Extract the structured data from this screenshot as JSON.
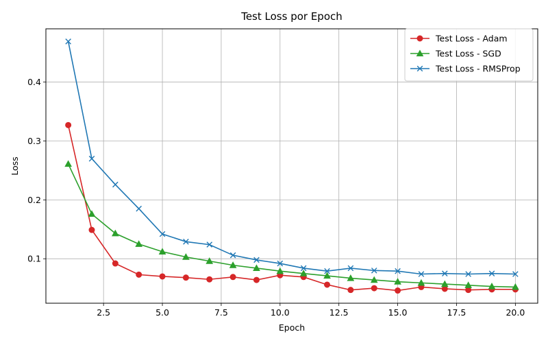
{
  "chart_data": {
    "type": "line",
    "title": "Test Loss por Epoch",
    "xlabel": "Epoch",
    "ylabel": "Loss",
    "xlim": [
      0.05,
      20.95
    ],
    "ylim": [
      0.0245,
      0.4905
    ],
    "xticks": [
      2.5,
      5.0,
      7.5,
      10.0,
      12.5,
      15.0,
      17.5,
      20.0
    ],
    "xtick_labels": [
      "2.5",
      "5.0",
      "7.5",
      "10.0",
      "12.5",
      "15.0",
      "17.5",
      "20.0"
    ],
    "yticks": [
      0.1,
      0.2,
      0.3,
      0.4
    ],
    "ytick_labels": [
      "0.1",
      "0.2",
      "0.3",
      "0.4"
    ],
    "grid": true,
    "legend_position": "top-right",
    "x": [
      1,
      2,
      3,
      4,
      5,
      6,
      7,
      8,
      9,
      10,
      11,
      12,
      13,
      14,
      15,
      16,
      17,
      18,
      19,
      20
    ],
    "series": [
      {
        "name": "Test Loss - Adam",
        "color": "#d62728",
        "marker": "circle",
        "values": [
          0.327,
          0.149,
          0.092,
          0.073,
          0.07,
          0.068,
          0.065,
          0.069,
          0.064,
          0.072,
          0.069,
          0.056,
          0.047,
          0.05,
          0.046,
          0.052,
          0.049,
          0.047,
          0.048,
          0.048
        ]
      },
      {
        "name": "Test Loss - SGD",
        "color": "#2ca02c",
        "marker": "triangle",
        "values": [
          0.261,
          0.176,
          0.143,
          0.125,
          0.112,
          0.103,
          0.096,
          0.089,
          0.084,
          0.079,
          0.075,
          0.071,
          0.067,
          0.064,
          0.061,
          0.059,
          0.057,
          0.055,
          0.053,
          0.052
        ]
      },
      {
        "name": "Test Loss - RMSProp",
        "color": "#1f77b4",
        "marker": "x",
        "values": [
          0.469,
          0.27,
          0.226,
          0.185,
          0.142,
          0.129,
          0.124,
          0.106,
          0.098,
          0.092,
          0.084,
          0.079,
          0.084,
          0.08,
          0.079,
          0.074,
          0.075,
          0.074,
          0.075,
          0.074
        ]
      }
    ]
  }
}
